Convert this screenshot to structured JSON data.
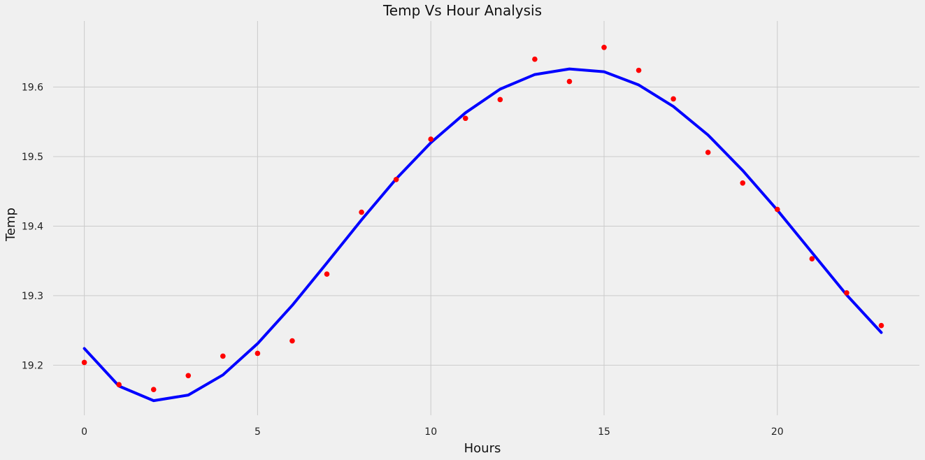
{
  "chart_data": {
    "type": "line",
    "title": "Temp Vs Hour Analysis",
    "xlabel": "Hours",
    "ylabel": "Temp",
    "xlim": [
      -0.9,
      24.1
    ],
    "ylim": [
      19.128,
      19.695
    ],
    "xticks": [
      0,
      5,
      10,
      15,
      20
    ],
    "yticks": [
      19.2,
      19.3,
      19.4,
      19.5,
      19.6
    ],
    "ytick_labels": [
      "19.2",
      "19.3",
      "19.4",
      "19.5",
      "19.6"
    ],
    "grid": true,
    "series": [
      {
        "kind": "scatter",
        "color": "#ff0000",
        "x": [
          0,
          1,
          2,
          3,
          4,
          5,
          6,
          7,
          8,
          9,
          10,
          11,
          12,
          13,
          14,
          15,
          16,
          17,
          18,
          19,
          20,
          21,
          22,
          23
        ],
        "y": [
          19.204,
          19.172,
          19.165,
          19.185,
          19.213,
          19.217,
          19.235,
          19.331,
          19.42,
          19.467,
          19.525,
          19.555,
          19.582,
          19.64,
          19.608,
          19.657,
          19.624,
          19.583,
          19.506,
          19.462,
          19.424,
          19.353,
          19.304,
          19.257
        ]
      },
      {
        "kind": "line",
        "color": "#0000ff",
        "x": [
          0,
          1,
          2,
          3,
          4,
          5,
          6,
          7,
          8,
          9,
          10,
          11,
          12,
          13,
          14,
          15,
          16,
          17,
          18,
          19,
          20,
          21,
          22,
          23
        ],
        "y": [
          19.224,
          19.17,
          19.149,
          19.157,
          19.186,
          19.231,
          19.286,
          19.347,
          19.409,
          19.468,
          19.52,
          19.563,
          19.597,
          19.618,
          19.626,
          19.622,
          19.603,
          19.572,
          19.531,
          19.48,
          19.423,
          19.362,
          19.301,
          19.247
        ]
      }
    ]
  }
}
